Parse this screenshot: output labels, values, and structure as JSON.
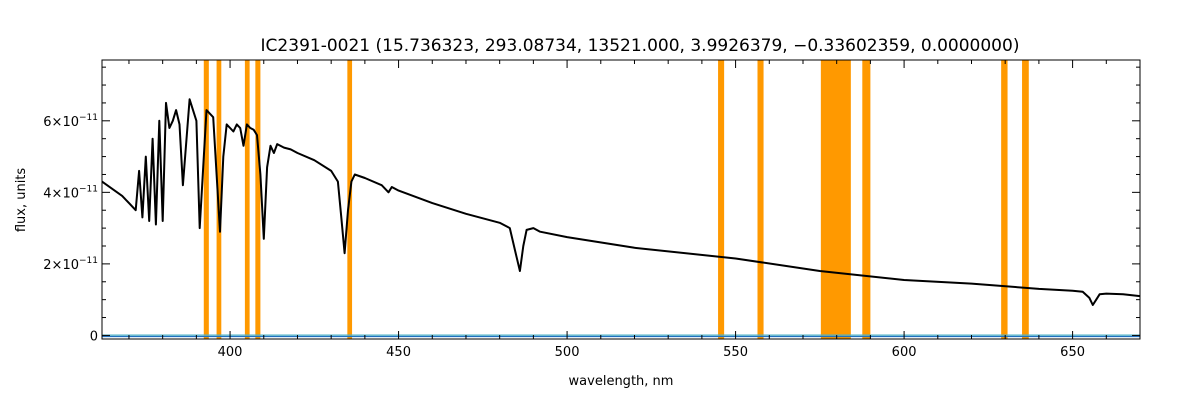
{
  "chart_data": {
    "type": "line",
    "title": "IC2391-0021    (15.736323, 293.08734, 13521.000, 3.9926379, −0.33602359, 0.0000000)",
    "xlabel": "wavelength, nm",
    "ylabel": "flux, units",
    "xlim": [
      362,
      670
    ],
    "ylim": [
      -1e-12,
      7.7e-11
    ],
    "x_ticks": [
      400,
      450,
      500,
      550,
      600,
      650
    ],
    "x_tick_labels": [
      "400",
      "450",
      "500",
      "550",
      "600",
      "650"
    ],
    "y_ticks": [
      0,
      2e-11,
      4e-11,
      6e-11
    ],
    "y_tick_labels": [
      {
        "base": "0",
        "exp": ""
      },
      {
        "base": "2×10",
        "exp": "−11"
      },
      {
        "base": "4×10",
        "exp": "−11"
      },
      {
        "base": "6×10",
        "exp": "−11"
      }
    ],
    "grid": false,
    "masked_bands_color": "#FF9900",
    "masked_bands": [
      [
        392.2,
        393.7
      ],
      [
        396.0,
        397.4
      ],
      [
        404.4,
        405.8
      ],
      [
        407.5,
        409.0
      ],
      [
        434.8,
        436.2
      ],
      [
        544.8,
        546.6
      ],
      [
        556.5,
        558.3
      ],
      [
        575.3,
        584.2
      ],
      [
        587.6,
        590.0
      ],
      [
        628.8,
        630.7
      ],
      [
        635.0,
        637.0
      ]
    ],
    "series": [
      {
        "color": "#000000",
        "x": [
          362,
          368,
          370,
          372,
          373,
          374,
          375,
          376,
          377,
          378,
          379,
          380,
          381,
          382,
          383,
          384,
          385,
          386,
          388,
          390,
          391,
          393,
          395,
          397,
          398,
          399,
          400,
          401,
          402,
          403,
          404,
          405,
          406,
          407,
          408,
          409,
          410,
          411,
          412,
          413,
          414,
          416,
          418,
          420,
          425,
          430,
          432,
          433,
          434,
          435,
          436,
          437,
          440,
          445,
          447,
          448,
          450,
          460,
          470,
          480,
          483,
          485,
          486,
          487,
          488,
          490,
          492,
          500,
          520,
          550,
          575,
          600,
          620,
          640,
          650,
          653,
          655,
          656,
          657,
          658,
          660,
          665,
          670
        ],
        "y": [
          4.3e-11,
          3.9e-11,
          3.7e-11,
          3.5e-11,
          4.6e-11,
          3.3e-11,
          5e-11,
          3.2e-11,
          5.5e-11,
          3.1e-11,
          6e-11,
          3.2e-11,
          6.5e-11,
          5.8e-11,
          6e-11,
          6.3e-11,
          5.9e-11,
          4.2e-11,
          6.6e-11,
          6e-11,
          3e-11,
          6.3e-11,
          6.1e-11,
          2.9e-11,
          5e-11,
          5.9e-11,
          5.8e-11,
          5.7e-11,
          5.9e-11,
          5.8e-11,
          5.3e-11,
          5.9e-11,
          5.8e-11,
          5.75e-11,
          5.6e-11,
          4.5e-11,
          2.7e-11,
          4.7e-11,
          5.3e-11,
          5.1e-11,
          5.35e-11,
          5.25e-11,
          5.2e-11,
          5.1e-11,
          4.9e-11,
          4.6e-11,
          4.3e-11,
          3.3e-11,
          2.3e-11,
          3.5e-11,
          4.3e-11,
          4.5e-11,
          4.4e-11,
          4.2e-11,
          4e-11,
          4.15e-11,
          4.05e-11,
          3.7e-11,
          3.4e-11,
          3.15e-11,
          3e-11,
          2.2e-11,
          1.8e-11,
          2.5e-11,
          2.95e-11,
          3e-11,
          2.9e-11,
          2.75e-11,
          2.45e-11,
          2.15e-11,
          1.8e-11,
          1.55e-11,
          1.45e-11,
          1.3e-11,
          1.25e-11,
          1.22e-11,
          1.05e-11,
          8.5e-12,
          1e-11,
          1.15e-11,
          1.17e-11,
          1.15e-11,
          1.1e-11
        ]
      },
      {
        "color": "#1F6FBF",
        "x": [
          362,
          670
        ],
        "y": [
          -3e-13,
          -3e-13
        ]
      },
      {
        "color": "#4FB0C6",
        "x": [
          362,
          670
        ],
        "y": [
          1e-13,
          1e-13
        ]
      }
    ]
  }
}
